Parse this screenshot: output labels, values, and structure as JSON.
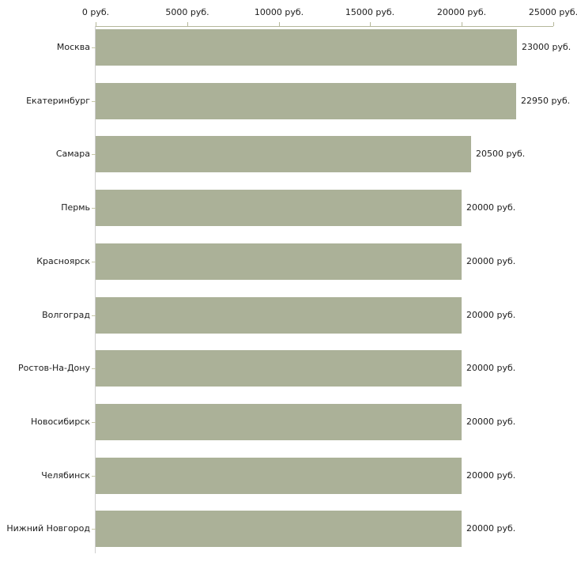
{
  "chart_data": {
    "type": "bar",
    "orientation": "horizontal",
    "title": "",
    "unit": "руб.",
    "categories": [
      "Москва",
      "Екатеринбург",
      "Самара",
      "Пермь",
      "Красноярск",
      "Волгоград",
      "Ростов-На-Дону",
      "Новосибирск",
      "Челябинск",
      "Нижний Новгород"
    ],
    "values": [
      23000,
      22950,
      20500,
      20000,
      20000,
      20000,
      20000,
      20000,
      20000,
      20000
    ],
    "value_labels": [
      "23000 руб.",
      "22950 руб.",
      "20500 руб.",
      "20000 руб.",
      "20000 руб.",
      "20000 руб.",
      "20000 руб.",
      "20000 руб.",
      "20000 руб.",
      "20000 руб."
    ],
    "x_axis": {
      "position": "top",
      "range": [
        0,
        25000
      ],
      "ticks": [
        0,
        5000,
        10000,
        15000,
        20000,
        25000
      ],
      "tick_labels": [
        "0 руб.",
        "5000 руб.",
        "10000 руб.",
        "15000 руб.",
        "20000 руб.",
        "25000 руб."
      ]
    },
    "legend": "none",
    "grid": "off",
    "colors": {
      "bar": "#abb198",
      "axis": "#b5b79a",
      "category_tick": "#c6c8a8",
      "y_axis_line": "#cfcfcf",
      "text": "#1c1c1c",
      "background": "#ffffff"
    }
  }
}
